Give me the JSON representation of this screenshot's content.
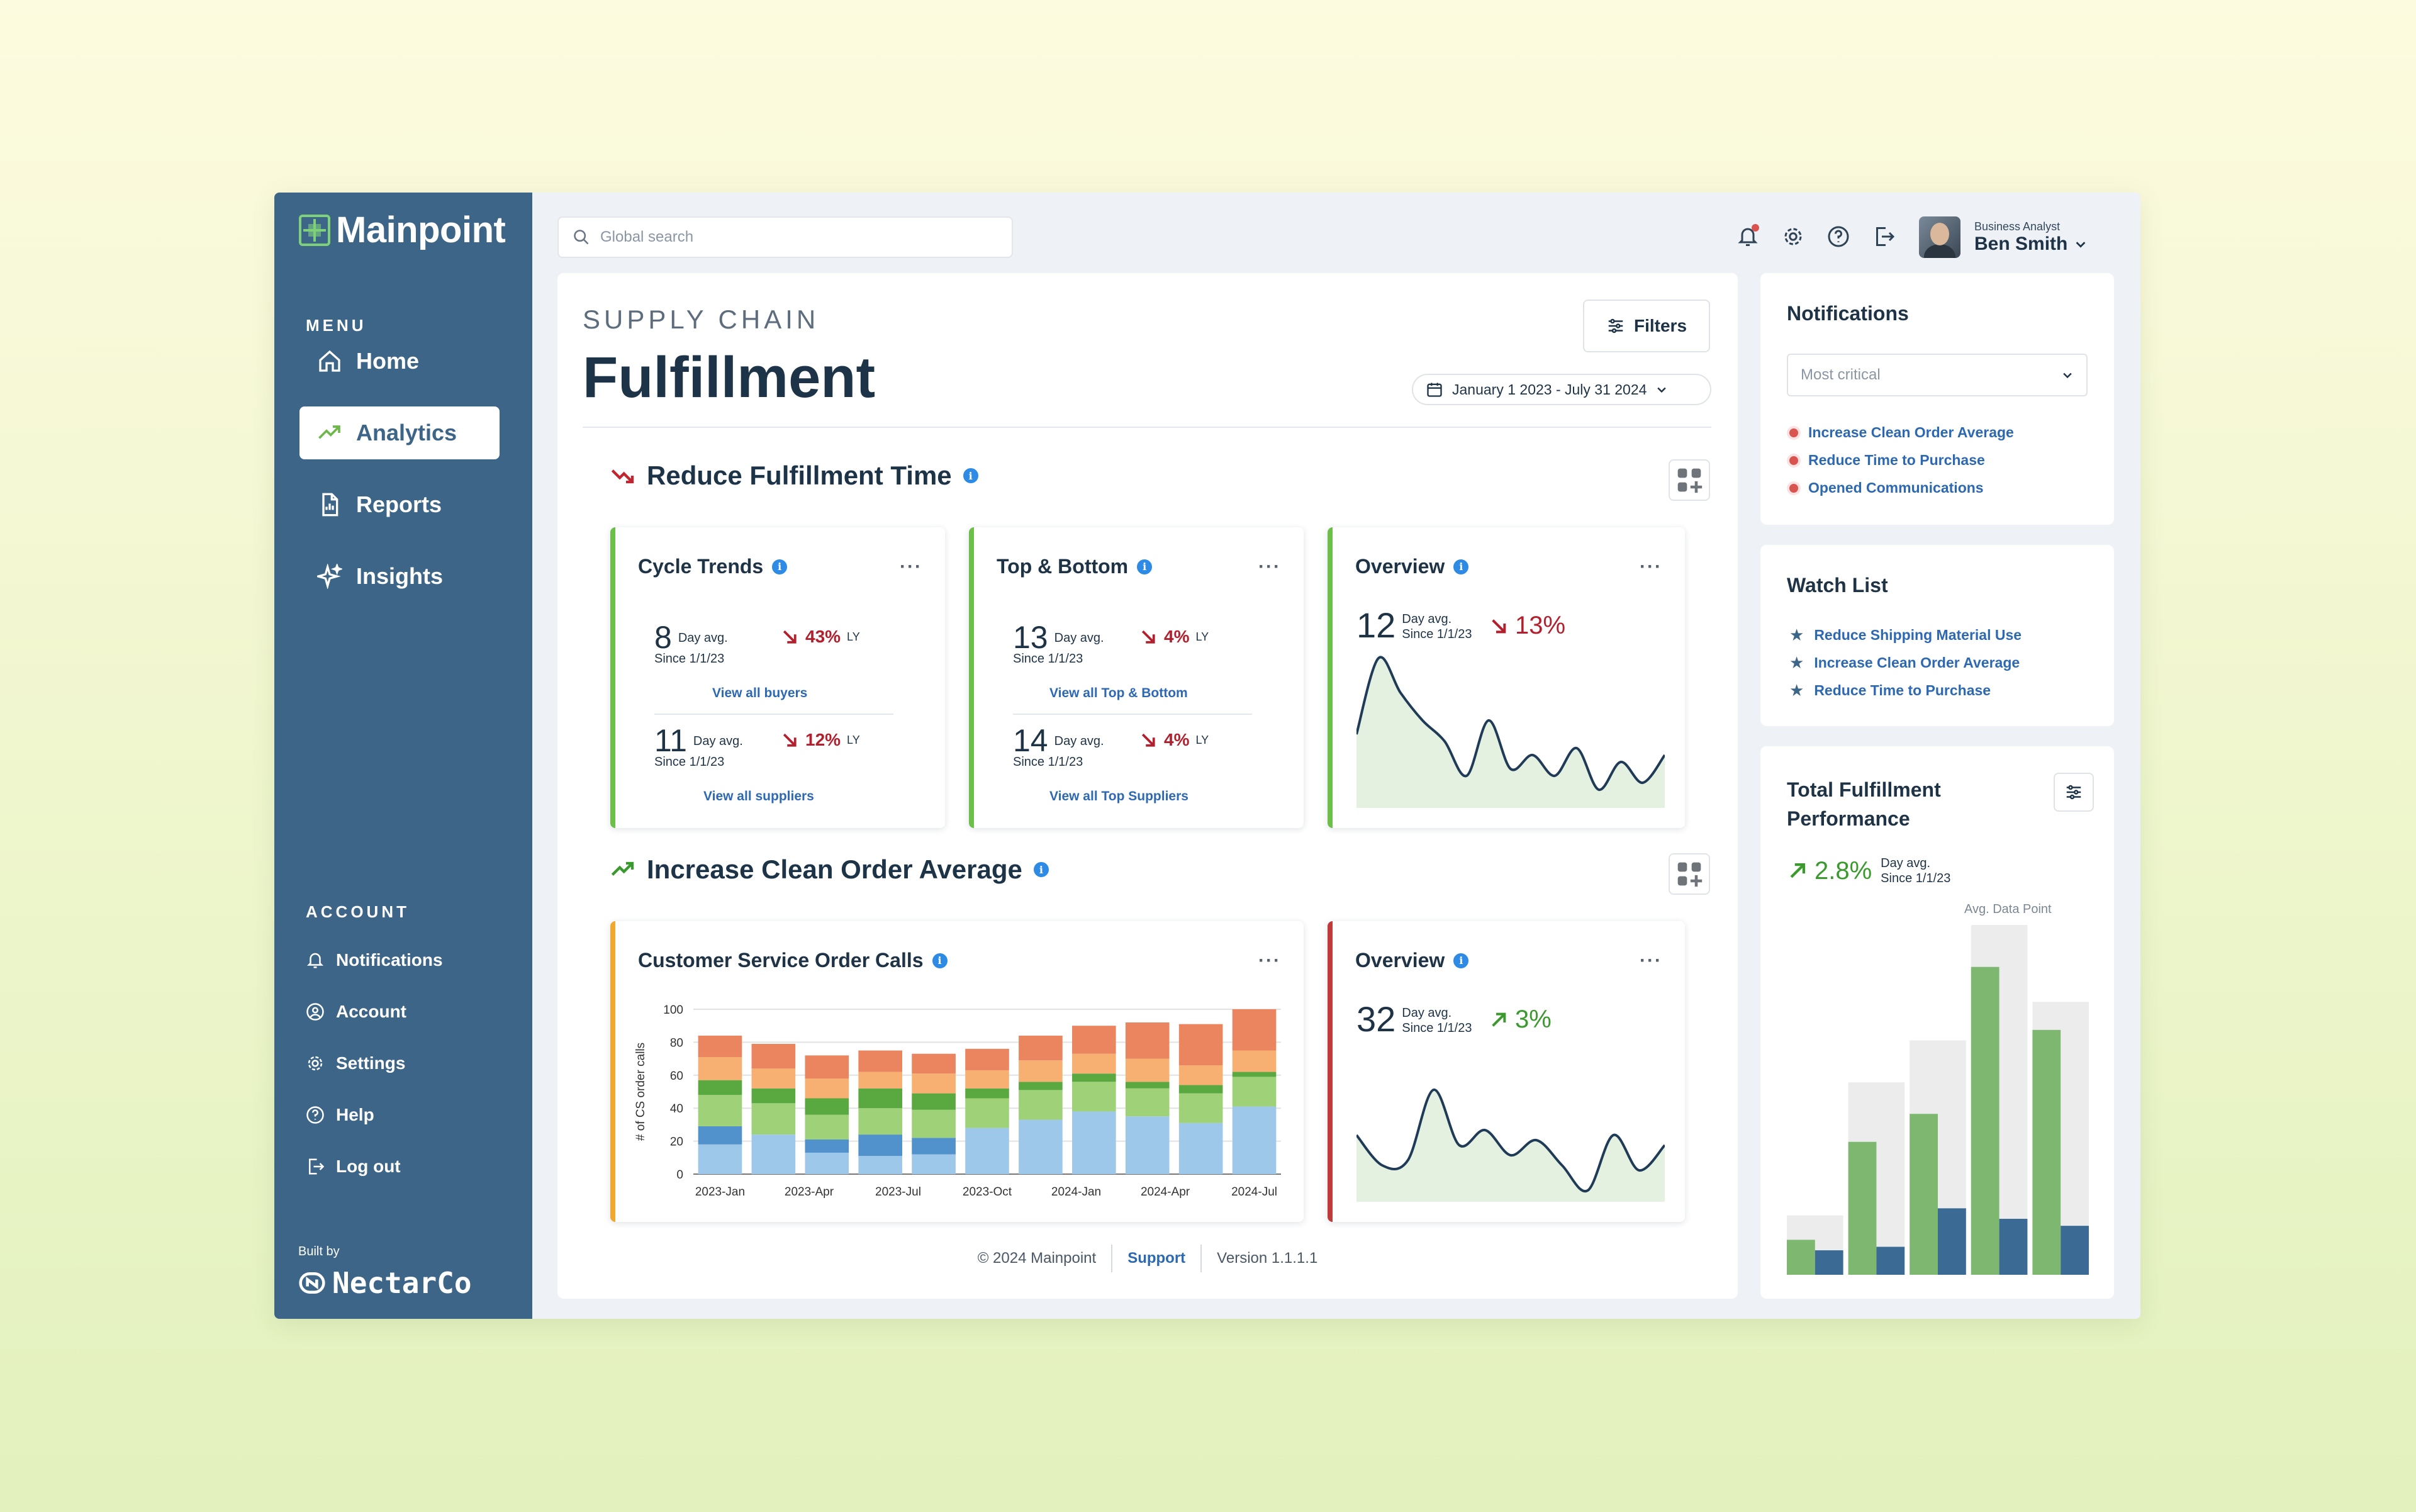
{
  "app": {
    "logo": "Mainpoint",
    "built_by_label": "Built by",
    "built_by": "NectarCo"
  },
  "sidebar": {
    "menu_title": "MENU",
    "items": [
      {
        "label": "Home",
        "icon": "home-icon"
      },
      {
        "label": "Analytics",
        "icon": "trending-up-icon",
        "active": true
      },
      {
        "label": "Reports",
        "icon": "report-icon"
      },
      {
        "label": "Insights",
        "icon": "sparkle-icon"
      }
    ],
    "account_title": "ACCOUNT",
    "account_items": [
      {
        "label": "Notifications",
        "icon": "bell-icon"
      },
      {
        "label": "Account",
        "icon": "user-circle-icon"
      },
      {
        "label": "Settings",
        "icon": "gear-icon"
      },
      {
        "label": "Help",
        "icon": "help-icon"
      },
      {
        "label": "Log out",
        "icon": "logout-icon"
      }
    ]
  },
  "topbar": {
    "search_placeholder": "Global search",
    "user_role": "Business Analyst",
    "user_name": "Ben Smith"
  },
  "page": {
    "eyebrow": "SUPPLY CHAIN",
    "title": "Fulfillment",
    "filters_label": "Filters",
    "date_range": "January 1 2023 - July 31 2024"
  },
  "section1": {
    "title": "Reduce Fulfillment Time",
    "cycle": {
      "title": "Cycle Trends",
      "m1": {
        "value": "8",
        "label1": "Day avg.",
        "label2": "Since 1/1/23",
        "pct": "43%",
        "ly": "LY",
        "link": "View all buyers"
      },
      "m2": {
        "value": "11",
        "label1": "Day avg.",
        "label2": "Since 1/1/23",
        "pct": "12%",
        "ly": "LY",
        "link": "View all suppliers"
      }
    },
    "topbottom": {
      "title": "Top & Bottom",
      "m1": {
        "value": "13",
        "label1": "Day avg.",
        "label2": "Since 1/1/23",
        "pct": "4%",
        "ly": "LY",
        "link": "View all Top & Bottom"
      },
      "m2": {
        "value": "14",
        "label1": "Day avg.",
        "label2": "Since 1/1/23",
        "pct": "4%",
        "ly": "LY",
        "link": "View all Top Suppliers"
      }
    },
    "overview": {
      "title": "Overview",
      "value": "12",
      "label1": "Day avg.",
      "label2": "Since 1/1/23",
      "pct": "13%"
    }
  },
  "section2": {
    "title": "Increase Clean Order Average",
    "calls": {
      "title": "Customer Service Order Calls",
      "ylabel": "# of CS order calls"
    },
    "overview": {
      "title": "Overview",
      "value": "32",
      "label1": "Day avg.",
      "label2": "Since 1/1/23",
      "pct": "3%"
    }
  },
  "footer": {
    "copyright": "© 2024 Mainpoint",
    "support": "Support",
    "version": "Version 1.1.1.1"
  },
  "notifications": {
    "title": "Notifications",
    "select": "Most critical",
    "items": [
      "Increase Clean Order Average",
      "Reduce Time to Purchase",
      "Opened Communications"
    ]
  },
  "watchlist": {
    "title": "Watch List",
    "items": [
      "Reduce Shipping Material Use",
      "Increase Clean Order Average",
      "Reduce Time to Purchase"
    ]
  },
  "performance": {
    "title_line1": "Total Fulfillment",
    "title_line2": "Performance",
    "pct": "2.8%",
    "label1": "Day avg.",
    "label2": "Since 1/1/23",
    "avg_label": "Avg. Data Point"
  },
  "colors": {
    "sidebar": "#3d6588",
    "green": "#6cc04a",
    "red": "#c03a3a",
    "amber": "#f0a830",
    "link": "#2d68b3",
    "down": "#b21f2d",
    "up": "#3a9a2e"
  },
  "chart_data": [
    {
      "id": "cs-order-calls",
      "type": "bar",
      "stacked": true,
      "ylabel": "# of CS order calls",
      "ylim": [
        0,
        100
      ],
      "yticks": [
        0,
        20,
        40,
        60,
        80,
        100
      ],
      "xticks": [
        "2023-Jan",
        "2023-Apr",
        "2023-Jul",
        "2023-Oct",
        "2024-Jan",
        "2024-Apr",
        "2024-Jul"
      ],
      "n_bars": 11,
      "series": [
        {
          "color": "#9ec8ea",
          "values": [
            18,
            24,
            13,
            11,
            12,
            28,
            33,
            38,
            35,
            31,
            41
          ]
        },
        {
          "color": "#5191cc",
          "values": [
            11,
            0,
            8,
            13,
            10,
            0,
            0,
            0,
            0,
            0,
            0
          ]
        },
        {
          "color": "#9ed178",
          "values": [
            19,
            19,
            15,
            16,
            17,
            18,
            18,
            18,
            17,
            18,
            18
          ]
        },
        {
          "color": "#5aa840",
          "values": [
            9,
            9,
            10,
            12,
            10,
            6,
            5,
            5,
            4,
            5,
            3
          ]
        },
        {
          "color": "#f7b072",
          "values": [
            14,
            12,
            12,
            10,
            12,
            11,
            13,
            12,
            14,
            12,
            13
          ]
        },
        {
          "color": "#ea8560",
          "values": [
            13,
            15,
            14,
            13,
            12,
            13,
            15,
            17,
            22,
            25,
            25
          ]
        }
      ]
    },
    {
      "id": "overview-1",
      "type": "area",
      "values": [
        0.45,
        1.0,
        0.75,
        0.55,
        0.4,
        0.15,
        0.55,
        0.2,
        0.3,
        0.15,
        0.35,
        0.05,
        0.25,
        0.1,
        0.3
      ]
    },
    {
      "id": "overview-2",
      "type": "area",
      "values": [
        0.55,
        0.25,
        0.3,
        1.0,
        0.45,
        0.6,
        0.35,
        0.5,
        0.25,
        0.0,
        0.55,
        0.2,
        0.45
      ]
    },
    {
      "id": "total-fulfillment",
      "type": "bar",
      "xticks": [],
      "series": [
        {
          "name": "",
          "color": "#ececec",
          "values": [
            0.17,
            0.55,
            0.67,
            1.0,
            0.78
          ]
        },
        {
          "name": "",
          "color": "#7eb870",
          "values": [
            0.1,
            0.38,
            0.46,
            0.88,
            0.7
          ]
        },
        {
          "name": "",
          "color": "#3b6a95",
          "values": [
            0.07,
            0.08,
            0.19,
            0.16,
            0.14
          ]
        }
      ]
    }
  ]
}
